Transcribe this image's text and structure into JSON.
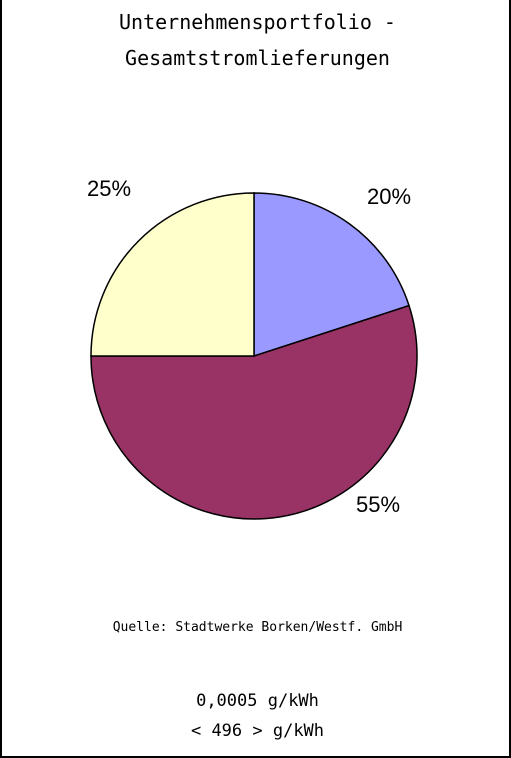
{
  "title_line1": "Unternehmensportfolio -",
  "title_line2": "Gesamtstromlieferungen",
  "source": "Quelle: Stadtwerke Borken/Westf. GmbH",
  "emission_line1": "0,0005 g/kWh",
  "emission_line2": "< 496 > g/kWh",
  "chart_data": {
    "type": "pie",
    "values": [
      20,
      55,
      25
    ],
    "labels": [
      "20%",
      "55%",
      "25%"
    ],
    "colors": [
      "#9999ff",
      "#993366",
      "#ffffcc"
    ],
    "start": "12 o'clock, clockwise",
    "title": "Unternehmensportfolio - Gesamtstromlieferungen"
  }
}
